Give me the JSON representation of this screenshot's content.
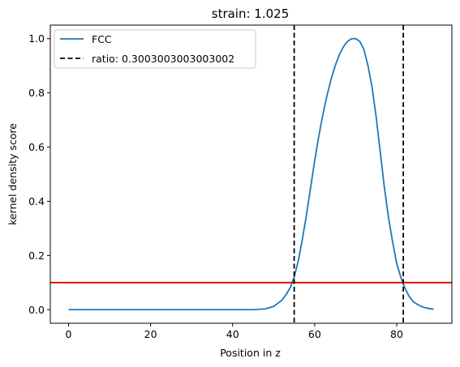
{
  "chart_data": {
    "type": "line",
    "title": "strain: 1.025",
    "xlabel": "Position in z",
    "ylabel": "kernel density score",
    "xlim": [
      -4.45,
      93.45
    ],
    "ylim": [
      -0.05,
      1.05
    ],
    "xticks": [
      0,
      20,
      40,
      60,
      80
    ],
    "yticks": [
      0.0,
      0.2,
      0.4,
      0.6,
      0.8,
      1.0
    ],
    "xtick_labels": [
      "0",
      "20",
      "40",
      "60",
      "80"
    ],
    "ytick_labels": [
      "0.0",
      "0.2",
      "0.4",
      "0.6",
      "0.8",
      "1.0"
    ],
    "grid": false,
    "legend_position": "upper-left",
    "series": [
      {
        "name": "FCC",
        "color": "#1f77b4",
        "points": [
          [
            0,
            0.0
          ],
          [
            10,
            0.0
          ],
          [
            20,
            0.0
          ],
          [
            30,
            0.0
          ],
          [
            40,
            0.0
          ],
          [
            45,
            0.0
          ],
          [
            48,
            0.003
          ],
          [
            50,
            0.012
          ],
          [
            52,
            0.035
          ],
          [
            53,
            0.055
          ],
          [
            54,
            0.08
          ],
          [
            55,
            0.12
          ],
          [
            56,
            0.18
          ],
          [
            57,
            0.26
          ],
          [
            58,
            0.35
          ],
          [
            59,
            0.45
          ],
          [
            60,
            0.55
          ],
          [
            61,
            0.64
          ],
          [
            62,
            0.72
          ],
          [
            63,
            0.79
          ],
          [
            64,
            0.85
          ],
          [
            65,
            0.9
          ],
          [
            66,
            0.94
          ],
          [
            67,
            0.97
          ],
          [
            68,
            0.99
          ],
          [
            69,
            1.0
          ],
          [
            70,
            1.0
          ],
          [
            71,
            0.99
          ],
          [
            72,
            0.96
          ],
          [
            73,
            0.9
          ],
          [
            74,
            0.82
          ],
          [
            75,
            0.71
          ],
          [
            76,
            0.58
          ],
          [
            77,
            0.45
          ],
          [
            78,
            0.34
          ],
          [
            79,
            0.25
          ],
          [
            80,
            0.17
          ],
          [
            81,
            0.12
          ],
          [
            82,
            0.08
          ],
          [
            83,
            0.05
          ],
          [
            84,
            0.03
          ],
          [
            85,
            0.02
          ],
          [
            86,
            0.012
          ],
          [
            87,
            0.007
          ],
          [
            88,
            0.004
          ],
          [
            89,
            0.002
          ]
        ]
      }
    ],
    "vlines": {
      "name": "ratio: 0.3003003003003002",
      "color": "#000000",
      "style": "dashed",
      "x": [
        55.0,
        81.6
      ]
    },
    "hline": {
      "y": 0.1,
      "color": "#dd0000"
    }
  }
}
